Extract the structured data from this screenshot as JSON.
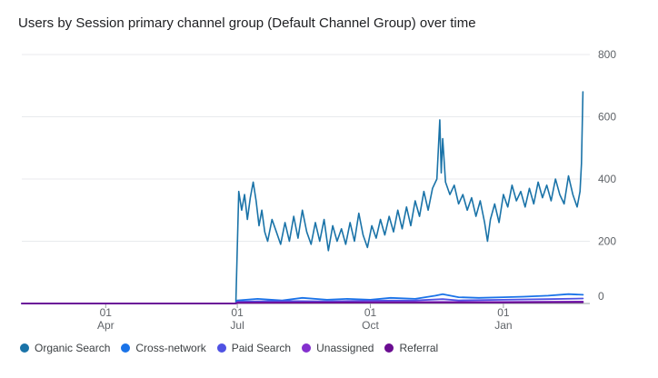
{
  "chart_data": {
    "type": "line",
    "title": "Users by Session primary channel group (Default Channel Group) over time",
    "xlabel": "",
    "ylabel": "",
    "ylim": [
      0,
      800
    ],
    "yticks": [
      "800",
      "600",
      "400",
      "200",
      "0"
    ],
    "xticks": [
      {
        "date": "2023-04-01",
        "day": "01",
        "month": "Apr"
      },
      {
        "date": "2023-07-01",
        "day": "01",
        "month": "Jul"
      },
      {
        "date": "2023-10-01",
        "day": "01",
        "month": "Oct"
      },
      {
        "date": "2024-01-01",
        "day": "01",
        "month": "Jan"
      }
    ],
    "x_range": [
      "2023-02-02",
      "2024-02-26"
    ],
    "grid": true,
    "legend_position": "bottom",
    "series": [
      {
        "name": "Organic Search",
        "color": "#1a73a8",
        "points": [
          [
            "2023-02-02",
            0
          ],
          [
            "2023-06-30",
            0
          ],
          [
            "2023-07-01",
            180
          ],
          [
            "2023-07-02",
            360
          ],
          [
            "2023-07-04",
            300
          ],
          [
            "2023-07-06",
            350
          ],
          [
            "2023-07-08",
            270
          ],
          [
            "2023-07-10",
            340
          ],
          [
            "2023-07-12",
            390
          ],
          [
            "2023-07-14",
            330
          ],
          [
            "2023-07-16",
            250
          ],
          [
            "2023-07-18",
            300
          ],
          [
            "2023-07-20",
            230
          ],
          [
            "2023-07-22",
            200
          ],
          [
            "2023-07-25",
            270
          ],
          [
            "2023-07-28",
            230
          ],
          [
            "2023-07-31",
            190
          ],
          [
            "2023-08-03",
            260
          ],
          [
            "2023-08-06",
            200
          ],
          [
            "2023-08-09",
            280
          ],
          [
            "2023-08-12",
            210
          ],
          [
            "2023-08-15",
            300
          ],
          [
            "2023-08-18",
            230
          ],
          [
            "2023-08-21",
            190
          ],
          [
            "2023-08-24",
            260
          ],
          [
            "2023-08-27",
            200
          ],
          [
            "2023-08-30",
            270
          ],
          [
            "2023-09-02",
            170
          ],
          [
            "2023-09-05",
            250
          ],
          [
            "2023-09-08",
            200
          ],
          [
            "2023-09-11",
            240
          ],
          [
            "2023-09-14",
            190
          ],
          [
            "2023-09-17",
            260
          ],
          [
            "2023-09-20",
            200
          ],
          [
            "2023-09-23",
            290
          ],
          [
            "2023-09-26",
            220
          ],
          [
            "2023-09-29",
            180
          ],
          [
            "2023-10-02",
            250
          ],
          [
            "2023-10-05",
            210
          ],
          [
            "2023-10-08",
            270
          ],
          [
            "2023-10-11",
            220
          ],
          [
            "2023-10-14",
            280
          ],
          [
            "2023-10-17",
            230
          ],
          [
            "2023-10-20",
            300
          ],
          [
            "2023-10-23",
            240
          ],
          [
            "2023-10-26",
            310
          ],
          [
            "2023-10-29",
            250
          ],
          [
            "2023-11-01",
            330
          ],
          [
            "2023-11-04",
            280
          ],
          [
            "2023-11-07",
            360
          ],
          [
            "2023-11-10",
            300
          ],
          [
            "2023-11-13",
            370
          ],
          [
            "2023-11-16",
            400
          ],
          [
            "2023-11-18",
            590
          ],
          [
            "2023-11-19",
            420
          ],
          [
            "2023-11-20",
            530
          ],
          [
            "2023-11-22",
            390
          ],
          [
            "2023-11-25",
            350
          ],
          [
            "2023-11-28",
            380
          ],
          [
            "2023-12-01",
            320
          ],
          [
            "2023-12-04",
            350
          ],
          [
            "2023-12-07",
            300
          ],
          [
            "2023-12-10",
            340
          ],
          [
            "2023-12-13",
            280
          ],
          [
            "2023-12-16",
            330
          ],
          [
            "2023-12-19",
            260
          ],
          [
            "2023-12-21",
            200
          ],
          [
            "2023-12-23",
            270
          ],
          [
            "2023-12-26",
            320
          ],
          [
            "2023-12-29",
            260
          ],
          [
            "2024-01-01",
            350
          ],
          [
            "2024-01-04",
            310
          ],
          [
            "2024-01-07",
            380
          ],
          [
            "2024-01-10",
            330
          ],
          [
            "2024-01-13",
            360
          ],
          [
            "2024-01-16",
            310
          ],
          [
            "2024-01-19",
            370
          ],
          [
            "2024-01-22",
            320
          ],
          [
            "2024-01-25",
            390
          ],
          [
            "2024-01-28",
            340
          ],
          [
            "2024-01-31",
            380
          ],
          [
            "2024-02-03",
            330
          ],
          [
            "2024-02-06",
            400
          ],
          [
            "2024-02-09",
            350
          ],
          [
            "2024-02-12",
            320
          ],
          [
            "2024-02-15",
            410
          ],
          [
            "2024-02-18",
            350
          ],
          [
            "2024-02-21",
            310
          ],
          [
            "2024-02-23",
            360
          ],
          [
            "2024-02-24",
            450
          ],
          [
            "2024-02-25",
            680
          ]
        ]
      },
      {
        "name": "Cross-network",
        "color": "#1a73e8",
        "points": [
          [
            "2023-02-02",
            0
          ],
          [
            "2023-06-30",
            0
          ],
          [
            "2023-07-01",
            10
          ],
          [
            "2023-07-15",
            15
          ],
          [
            "2023-08-01",
            10
          ],
          [
            "2023-08-15",
            18
          ],
          [
            "2023-09-01",
            12
          ],
          [
            "2023-09-15",
            15
          ],
          [
            "2023-10-01",
            12
          ],
          [
            "2023-10-15",
            18
          ],
          [
            "2023-11-01",
            15
          ],
          [
            "2023-11-15",
            25
          ],
          [
            "2023-11-20",
            30
          ],
          [
            "2023-12-01",
            20
          ],
          [
            "2023-12-15",
            18
          ],
          [
            "2024-01-01",
            20
          ],
          [
            "2024-01-15",
            22
          ],
          [
            "2024-02-01",
            25
          ],
          [
            "2024-02-15",
            30
          ],
          [
            "2024-02-25",
            28
          ]
        ]
      },
      {
        "name": "Paid Search",
        "color": "#4f52e3",
        "points": [
          [
            "2023-02-02",
            0
          ],
          [
            "2023-06-30",
            0
          ],
          [
            "2023-07-01",
            6
          ],
          [
            "2023-08-01",
            8
          ],
          [
            "2023-09-01",
            7
          ],
          [
            "2023-10-01",
            9
          ],
          [
            "2023-11-01",
            10
          ],
          [
            "2023-11-20",
            14
          ],
          [
            "2023-12-01",
            10
          ],
          [
            "2024-01-01",
            12
          ],
          [
            "2024-02-01",
            14
          ],
          [
            "2024-02-25",
            16
          ]
        ]
      },
      {
        "name": "Unassigned",
        "color": "#8430ce",
        "points": [
          [
            "2023-02-02",
            0
          ],
          [
            "2023-06-30",
            0
          ],
          [
            "2023-07-01",
            3
          ],
          [
            "2023-09-01",
            4
          ],
          [
            "2023-11-01",
            5
          ],
          [
            "2024-01-01",
            5
          ],
          [
            "2024-02-25",
            6
          ]
        ]
      },
      {
        "name": "Referral",
        "color": "#6a0d91",
        "points": [
          [
            "2023-02-02",
            0
          ],
          [
            "2023-06-30",
            0
          ],
          [
            "2023-07-01",
            2
          ],
          [
            "2023-10-01",
            3
          ],
          [
            "2024-01-01",
            3
          ],
          [
            "2024-02-25",
            4
          ]
        ]
      }
    ]
  }
}
